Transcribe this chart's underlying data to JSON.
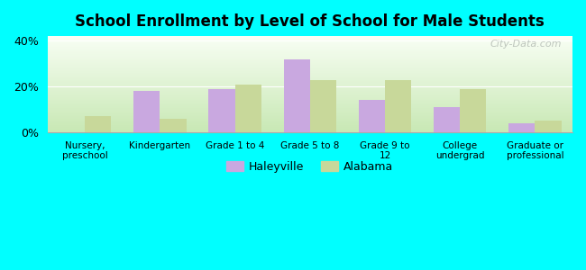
{
  "title": "School Enrollment by Level of School for Male Students",
  "categories": [
    "Nursery,\npreschool",
    "Kindergarten",
    "Grade 1 to 4",
    "Grade 5 to 8",
    "Grade 9 to\n12",
    "College\nundergrad",
    "Graduate or\nprofessional"
  ],
  "haleyville": [
    0,
    18,
    19,
    32,
    14,
    11,
    4
  ],
  "alabama": [
    7,
    6,
    21,
    23,
    23,
    19,
    5
  ],
  "haleyville_color": "#c9a8e0",
  "alabama_color": "#c8d89a",
  "background_color": "#00ffff",
  "ylim": [
    0,
    42
  ],
  "yticks": [
    0,
    20,
    40
  ],
  "ytick_labels": [
    "0%",
    "20%",
    "40%"
  ],
  "legend_haleyville": "Haleyville",
  "legend_alabama": "Alabama",
  "bar_width": 0.35
}
